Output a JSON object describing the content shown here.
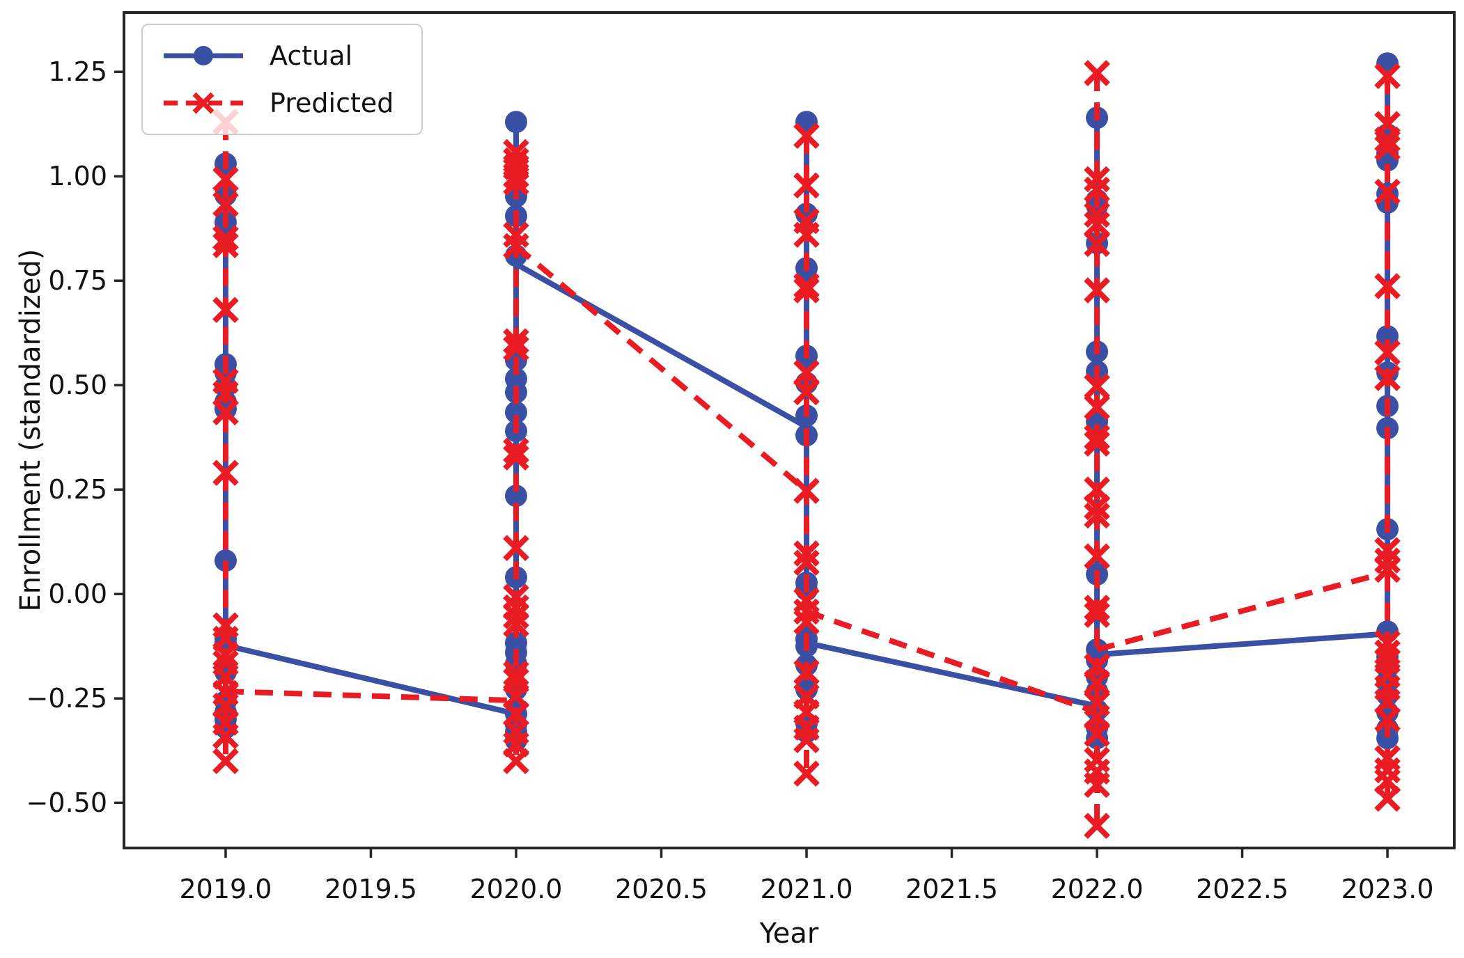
{
  "figure": {
    "background": "#ffffff",
    "text_color": "#111111",
    "axis_color": "#262626"
  },
  "chart_data": {
    "type": "line",
    "title": "",
    "xlabel": "Year",
    "ylabel": "Enrollment (standardized)",
    "grid": false,
    "legend_position": "upper left",
    "xlim": [
      2018.65,
      2023.23
    ],
    "ylim": [
      -0.608,
      1.392
    ],
    "x_ticks": [
      {
        "value": 2019.0,
        "label": "2019.0"
      },
      {
        "value": 2019.5,
        "label": "2019.5"
      },
      {
        "value": 2020.0,
        "label": "2020.0"
      },
      {
        "value": 2020.5,
        "label": "2020.5"
      },
      {
        "value": 2021.0,
        "label": "2021.0"
      },
      {
        "value": 2021.5,
        "label": "2021.5"
      },
      {
        "value": 2022.0,
        "label": "2022.0"
      },
      {
        "value": 2022.5,
        "label": "2022.5"
      },
      {
        "value": 2023.0,
        "label": "2023.0"
      }
    ],
    "y_ticks": [
      {
        "value": 1.25,
        "label": "1.25"
      },
      {
        "value": 1.0,
        "label": "1.00"
      },
      {
        "value": 0.75,
        "label": "0.75"
      },
      {
        "value": 0.5,
        "label": "0.50"
      },
      {
        "value": 0.25,
        "label": "0.25"
      },
      {
        "value": 0.0,
        "label": "0.00"
      },
      {
        "value": -0.25,
        "label": "−0.25"
      },
      {
        "value": -0.5,
        "label": "−0.50"
      }
    ],
    "series": [
      {
        "name": "Actual",
        "color": "#3a50a5",
        "line_style": "solid",
        "marker": "circle",
        "clusters": [
          {
            "year": 2019,
            "values": [
              1.03,
              0.955,
              0.89,
              0.55,
              0.53,
              0.497,
              0.46,
              0.443,
              0.08,
              -0.107,
              -0.117,
              -0.187,
              -0.257,
              -0.283,
              -0.3,
              -0.32
            ]
          },
          {
            "year": 2020,
            "values": [
              1.13,
              0.952,
              0.905,
              0.81,
              0.56,
              0.515,
              0.483,
              0.435,
              0.39,
              0.235,
              0.04,
              -0.117,
              -0.14,
              -0.167,
              -0.228,
              -0.287,
              -0.312,
              -0.33,
              -0.35
            ]
          },
          {
            "year": 2021,
            "values": [
              1.13,
              0.91,
              0.78,
              0.57,
              0.505,
              0.427,
              0.38,
              0.027,
              0.01,
              -0.108,
              -0.125,
              -0.17,
              -0.228,
              -0.31,
              -0.33
            ]
          },
          {
            "year": 2022,
            "values": [
              1.14,
              0.943,
              0.93,
              0.84,
              0.58,
              0.533,
              0.413,
              0.047,
              -0.133,
              -0.158,
              -0.198,
              -0.233,
              -0.278,
              -0.32,
              -0.345
            ]
          },
          {
            "year": 2023,
            "values": [
              1.27,
              1.1,
              1.055,
              1.038,
              0.958,
              0.937,
              0.617,
              0.53,
              0.45,
              0.397,
              0.155,
              -0.09,
              -0.15,
              -0.175,
              -0.208,
              -0.242,
              -0.283,
              -0.323,
              -0.345
            ]
          }
        ],
        "connectors": [
          {
            "from_year": 2019,
            "from": -0.123,
            "to_year": 2020,
            "to": -0.287
          },
          {
            "from_year": 2020,
            "from": 0.79,
            "to_year": 2021,
            "to": 0.4
          },
          {
            "from_year": 2021,
            "from": -0.117,
            "to_year": 2022,
            "to": -0.268
          },
          {
            "from_year": 2022,
            "from": -0.145,
            "to_year": 2023,
            "to": -0.095
          }
        ]
      },
      {
        "name": "Predicted",
        "color": "#e91c24",
        "line_style": "dashed",
        "marker": "x",
        "clusters": [
          {
            "year": 2019,
            "values": [
              1.13,
              0.993,
              0.933,
              0.852,
              0.835,
              0.68,
              0.51,
              0.48,
              0.435,
              0.29,
              -0.075,
              -0.107,
              -0.145,
              -0.165,
              -0.198,
              -0.237,
              -0.267,
              -0.308,
              -0.34,
              -0.4
            ]
          },
          {
            "year": 2020,
            "values": [
              1.058,
              1.038,
              1.022,
              1.002,
              0.985,
              0.86,
              0.833,
              0.605,
              0.588,
              0.343,
              0.327,
              0.11,
              -0.007,
              -0.032,
              -0.053,
              -0.073,
              -0.19,
              -0.207,
              -0.245,
              -0.287,
              -0.33,
              -0.36,
              -0.4
            ]
          },
          {
            "year": 2021,
            "values": [
              1.097,
              0.978,
              0.893,
              0.86,
              0.738,
              0.727,
              0.53,
              0.483,
              0.247,
              0.097,
              0.075,
              -0.015,
              -0.042,
              -0.067,
              -0.187,
              -0.245,
              -0.283,
              -0.32,
              -0.35,
              -0.43
            ]
          },
          {
            "year": 2022,
            "values": [
              1.247,
              0.993,
              0.968,
              0.908,
              0.885,
              0.838,
              0.727,
              0.497,
              0.447,
              0.375,
              0.36,
              0.25,
              0.208,
              0.188,
              0.09,
              -0.033,
              -0.05,
              -0.173,
              -0.212,
              -0.262,
              -0.295,
              -0.335,
              -0.397,
              -0.425,
              -0.457,
              -0.555
            ]
          },
          {
            "year": 2023,
            "values": [
              1.24,
              1.125,
              1.088,
              1.068,
              0.963,
              0.737,
              0.578,
              0.517,
              0.105,
              0.08,
              0.058,
              -0.117,
              -0.14,
              -0.16,
              -0.195,
              -0.225,
              -0.258,
              -0.3,
              -0.393,
              -0.422,
              -0.448,
              -0.49
            ]
          }
        ],
        "connectors": [
          {
            "from_year": 2019,
            "from": -0.233,
            "to_year": 2020,
            "to": -0.255
          },
          {
            "from_year": 2020,
            "from": 0.833,
            "to_year": 2021,
            "to": 0.247
          },
          {
            "from_year": 2021,
            "from": -0.042,
            "to_year": 2022,
            "to": -0.283
          },
          {
            "from_year": 2022,
            "from": -0.133,
            "to_year": 2023,
            "to": 0.052
          }
        ]
      }
    ]
  }
}
